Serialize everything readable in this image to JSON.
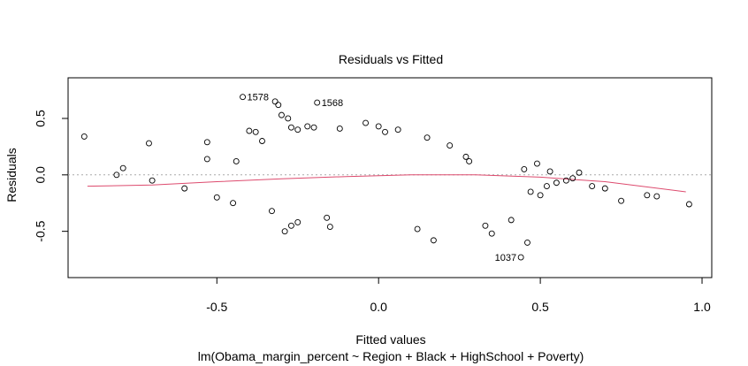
{
  "chart_data": {
    "type": "scatter",
    "title": "Residuals vs Fitted",
    "xlabel": "Fitted values",
    "subtitle": "lm(Obama_margin_percent ~ Region + Black + HighSchool + Poverty)",
    "ylabel": "Residuals",
    "xlim": [
      -0.96,
      1.03
    ],
    "ylim": [
      -0.91,
      0.86
    ],
    "x_ticks": [
      -0.5,
      0.0,
      0.5,
      1.0
    ],
    "x_tick_labels": [
      "-0.5",
      "0.0",
      "0.5",
      "1.0"
    ],
    "y_ticks": [
      -0.5,
      0.0,
      0.5
    ],
    "y_tick_labels": [
      "-0.5",
      "0.0",
      "0.5"
    ],
    "reference_line": {
      "y": 0,
      "style": "dotted",
      "color": "#aaaaaa"
    },
    "smoother": {
      "color": "#dd4b6e",
      "x": [
        -0.9,
        -0.7,
        -0.5,
        -0.3,
        -0.1,
        0.1,
        0.3,
        0.5,
        0.7,
        0.95
      ],
      "y": [
        -0.1,
        -0.09,
        -0.06,
        -0.035,
        -0.015,
        0.0,
        0.0,
        -0.02,
        -0.06,
        -0.15
      ]
    },
    "labeled_points": [
      {
        "label": "1578",
        "x": -0.42,
        "y": 0.69
      },
      {
        "label": "1568",
        "x": -0.19,
        "y": 0.64
      },
      {
        "label": "1037",
        "x": 0.44,
        "y": -0.73
      }
    ],
    "points": {
      "x": [
        -0.91,
        -0.81,
        -0.79,
        -0.71,
        -0.53,
        -0.53,
        -0.44,
        -0.4,
        -0.38,
        -0.36,
        -0.32,
        -0.31,
        -0.3,
        -0.28,
        -0.27,
        -0.25,
        -0.22,
        -0.2,
        -0.12,
        -0.04,
        0.0,
        0.02,
        0.06,
        0.15,
        0.22,
        0.27,
        0.28,
        0.45,
        0.53,
        0.62,
        0.66,
        0.75,
        0.83,
        0.86,
        0.96,
        0.58,
        0.52,
        0.46,
        0.33,
        0.17,
        -0.29,
        -0.33,
        -0.27,
        -0.25,
        -0.16,
        -0.7,
        -0.6,
        -0.5,
        -0.45,
        -0.15,
        0.12,
        0.35,
        0.41,
        0.5,
        0.55,
        0.6,
        0.7,
        0.47,
        0.49
      ],
      "y": [
        0.34,
        0.0,
        0.06,
        0.28,
        0.29,
        0.14,
        0.12,
        0.39,
        0.38,
        0.3,
        0.65,
        0.62,
        0.53,
        0.5,
        0.42,
        0.4,
        0.43,
        0.42,
        0.41,
        0.46,
        0.43,
        0.38,
        0.4,
        0.33,
        0.26,
        0.16,
        0.12,
        0.05,
        0.03,
        0.02,
        -0.1,
        -0.23,
        -0.18,
        -0.19,
        -0.26,
        -0.05,
        -0.1,
        -0.6,
        -0.45,
        -0.58,
        -0.5,
        -0.32,
        -0.45,
        -0.42,
        -0.38,
        -0.05,
        -0.12,
        -0.2,
        -0.25,
        -0.46,
        -0.48,
        -0.52,
        -0.4,
        -0.18,
        -0.07,
        -0.03,
        -0.12,
        -0.15,
        0.1
      ]
    }
  }
}
